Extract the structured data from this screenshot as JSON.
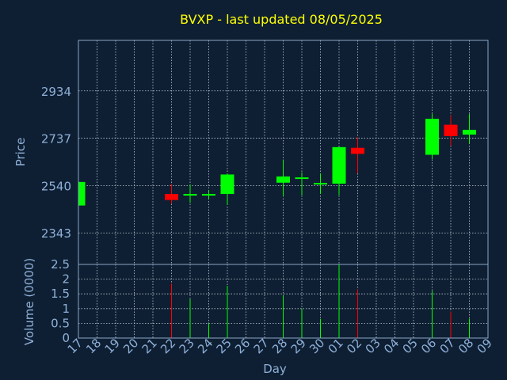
{
  "chart_data": [
    {
      "type": "candlestick",
      "title": "BVXP - last updated 08/05/2025",
      "ylabel": "Price",
      "ylim": [
        2212,
        3144
      ],
      "yticks": [
        2343,
        2540,
        2737,
        2934
      ],
      "grid": true,
      "x": [
        "17",
        "18",
        "19",
        "20",
        "21",
        "22",
        "23",
        "24",
        "25",
        "26",
        "27",
        "28",
        "29",
        "30",
        "01",
        "02",
        "03",
        "04",
        "05",
        "06",
        "07",
        "08",
        "09"
      ],
      "candles": [
        {
          "day": "17",
          "open": 2457,
          "close": 2555,
          "high": 2555,
          "low": 2457
        },
        {
          "day": "22",
          "open": 2505,
          "close": 2480,
          "high": 2548,
          "low": 2465
        },
        {
          "day": "23",
          "open": 2500,
          "close": 2505,
          "high": 2545,
          "low": 2468
        },
        {
          "day": "24",
          "open": 2500,
          "close": 2505,
          "high": 2520,
          "low": 2485
        },
        {
          "day": "25",
          "open": 2505,
          "close": 2586,
          "high": 2590,
          "low": 2460
        },
        {
          "day": "28",
          "open": 2552,
          "close": 2578,
          "high": 2645,
          "low": 2495
        },
        {
          "day": "29",
          "open": 2568,
          "close": 2574,
          "high": 2595,
          "low": 2500
        },
        {
          "day": "30",
          "open": 2546,
          "close": 2551,
          "high": 2590,
          "low": 2505
        },
        {
          "day": "01",
          "open": 2548,
          "close": 2700,
          "high": 2700,
          "low": 2500
        },
        {
          "day": "02",
          "open": 2697,
          "close": 2672,
          "high": 2742,
          "low": 2592
        },
        {
          "day": "06",
          "open": 2668,
          "close": 2818,
          "high": 2838,
          "low": 2650
        },
        {
          "day": "07",
          "open": 2793,
          "close": 2746,
          "high": 2832,
          "low": 2705
        },
        {
          "day": "08",
          "open": 2752,
          "close": 2772,
          "high": 2838,
          "low": 2715
        }
      ]
    },
    {
      "type": "bar",
      "ylabel": "Volume (0000)",
      "xlabel": "Day",
      "ylim": [
        0,
        2.5
      ],
      "yticks": [
        0,
        0.5,
        1,
        1.5,
        2,
        2.5
      ],
      "ytick_labels": [
        "0",
        "0.5",
        "1",
        "1.5",
        "2",
        "2.5"
      ],
      "grid": true,
      "categories": [
        "22",
        "23",
        "24",
        "25",
        "28",
        "29",
        "30",
        "01",
        "02",
        "06",
        "07",
        "08"
      ],
      "values": [
        1.85,
        1.32,
        0.5,
        1.77,
        1.45,
        1.0,
        0.65,
        2.5,
        1.65,
        1.6,
        0.9,
        0.66
      ],
      "directions": [
        "down",
        "up",
        "up",
        "up",
        "up",
        "up",
        "up",
        "up",
        "down",
        "up",
        "down",
        "up"
      ]
    }
  ],
  "colors": {
    "background": "#0e1f33",
    "plot_border": "#8aa4c4",
    "grid": "#c0c8d4",
    "title": "#ffff00",
    "axis_text": "#8fb0d8",
    "up": "#00ff00",
    "down": "#ff0000"
  }
}
